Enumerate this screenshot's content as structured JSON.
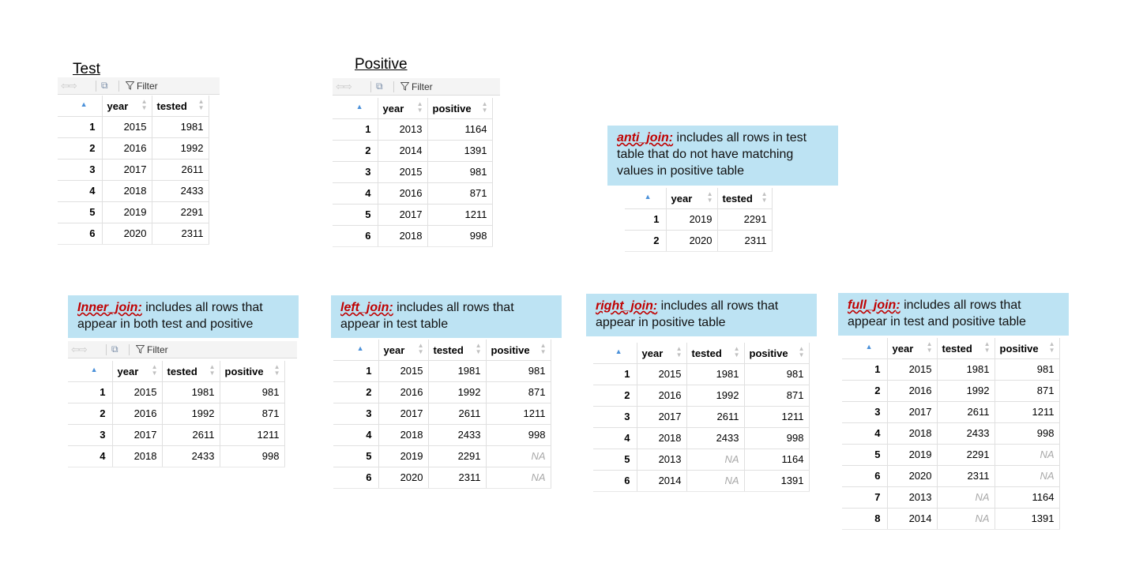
{
  "toolbar": {
    "filter_label": "Filter",
    "nav_glyph": "⇦⇨",
    "popout_glyph": "⧉"
  },
  "test": {
    "title": "Test",
    "headers": [
      "year",
      "tested"
    ],
    "rows": [
      [
        "1",
        "2015",
        "1981"
      ],
      [
        "2",
        "2016",
        "1992"
      ],
      [
        "3",
        "2017",
        "2611"
      ],
      [
        "4",
        "2018",
        "2433"
      ],
      [
        "5",
        "2019",
        "2291"
      ],
      [
        "6",
        "2020",
        "2311"
      ]
    ]
  },
  "positive": {
    "title": "Positive",
    "headers": [
      "year",
      "positive"
    ],
    "rows": [
      [
        "1",
        "2013",
        "1164"
      ],
      [
        "2",
        "2014",
        "1391"
      ],
      [
        "3",
        "2015",
        "981"
      ],
      [
        "4",
        "2016",
        "871"
      ],
      [
        "5",
        "2017",
        "1211"
      ],
      [
        "6",
        "2018",
        "998"
      ]
    ]
  },
  "anti_join": {
    "fn": "anti_join",
    "colon": ":",
    "desc": "  includes all rows in test table that do not have matching values in positive table",
    "headers": [
      "year",
      "tested"
    ],
    "rows": [
      [
        "1",
        "2019",
        "2291"
      ],
      [
        "2",
        "2020",
        "2311"
      ]
    ]
  },
  "inner_join": {
    "fn": "Inner_join",
    "colon": ":",
    "desc": " includes all rows that appear in both test and positive",
    "headers": [
      "year",
      "tested",
      "positive"
    ],
    "rows": [
      [
        "1",
        "2015",
        "1981",
        "981"
      ],
      [
        "2",
        "2016",
        "1992",
        "871"
      ],
      [
        "3",
        "2017",
        "2611",
        "1211"
      ],
      [
        "4",
        "2018",
        "2433",
        "998"
      ]
    ]
  },
  "left_join": {
    "fn": "left_join",
    "colon": ":",
    "desc": " includes all rows that appear in test table",
    "headers": [
      "year",
      "tested",
      "positive"
    ],
    "rows": [
      [
        "1",
        "2015",
        "1981",
        "981"
      ],
      [
        "2",
        "2016",
        "1992",
        "871"
      ],
      [
        "3",
        "2017",
        "2611",
        "1211"
      ],
      [
        "4",
        "2018",
        "2433",
        "998"
      ],
      [
        "5",
        "2019",
        "2291",
        "NA"
      ],
      [
        "6",
        "2020",
        "2311",
        "NA"
      ]
    ]
  },
  "right_join": {
    "fn": "right_join",
    "colon": ":",
    "desc": " includes all rows that appear in positive table",
    "headers": [
      "year",
      "tested",
      "positive"
    ],
    "rows": [
      [
        "1",
        "2015",
        "1981",
        "981"
      ],
      [
        "2",
        "2016",
        "1992",
        "871"
      ],
      [
        "3",
        "2017",
        "2611",
        "1211"
      ],
      [
        "4",
        "2018",
        "2433",
        "998"
      ],
      [
        "5",
        "2013",
        "NA",
        "1164"
      ],
      [
        "6",
        "2014",
        "NA",
        "1391"
      ]
    ]
  },
  "full_join": {
    "fn": "full_join",
    "colon": ":",
    "desc": " includes all rows that appear in test and positive table",
    "headers": [
      "year",
      "tested",
      "positive"
    ],
    "rows": [
      [
        "1",
        "2015",
        "1981",
        "981"
      ],
      [
        "2",
        "2016",
        "1992",
        "871"
      ],
      [
        "3",
        "2017",
        "2611",
        "1211"
      ],
      [
        "4",
        "2018",
        "2433",
        "998"
      ],
      [
        "5",
        "2019",
        "2291",
        "NA"
      ],
      [
        "6",
        "2020",
        "2311",
        "NA"
      ],
      [
        "7",
        "2013",
        "NA",
        "1164"
      ],
      [
        "8",
        "2014",
        "NA",
        "1391"
      ]
    ]
  }
}
